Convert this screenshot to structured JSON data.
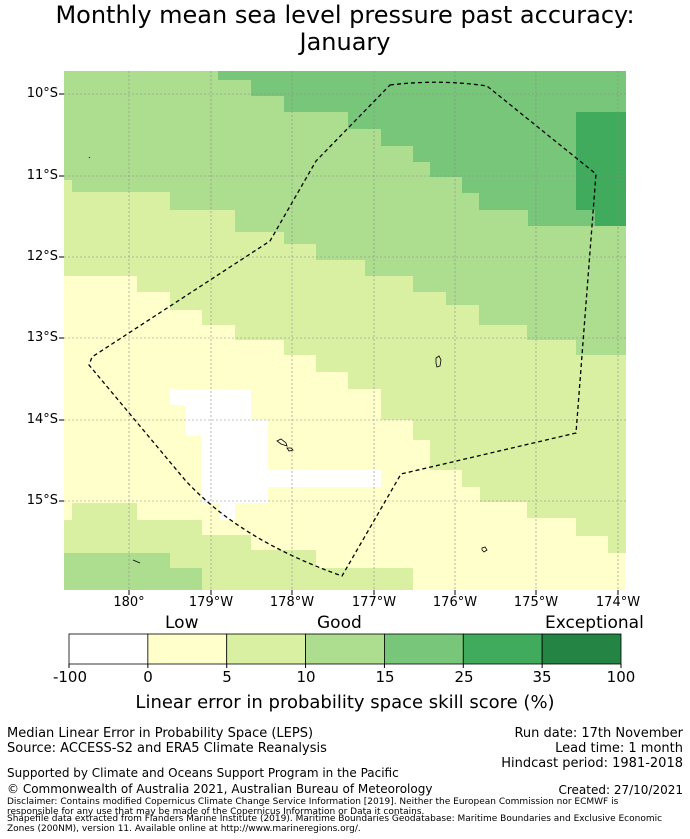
{
  "title_line1": "Monthly mean sea level pressure past accuracy:",
  "title_line2": "January",
  "map": {
    "lat_labels": [
      "10°S",
      "11°S",
      "12°S",
      "13°S",
      "14°S",
      "15°S"
    ],
    "lon_labels": [
      "180°",
      "179°W",
      "178°W",
      "177°W",
      "176°W",
      "175°W",
      "174°W"
    ],
    "colors": {
      "white": "#ffffff",
      "cream": "#ffffcc",
      "pale": "#d9f0a3",
      "light": "#addd8e",
      "mid": "#78c679",
      "green": "#41ab5d",
      "dark": "#238443",
      "grid": "#8a8a8a",
      "eez": "#000000"
    }
  },
  "colorbar": {
    "categories": [
      "Low",
      "Good",
      "Exceptional"
    ],
    "ticks": [
      "-100",
      "0",
      "5",
      "10",
      "15",
      "25",
      "35",
      "100"
    ],
    "bins": [
      "#ffffff",
      "#ffffcc",
      "#d9f0a3",
      "#addd8e",
      "#78c679",
      "#41ab5d",
      "#238443"
    ],
    "label": "Linear error in probability space skill score (%)"
  },
  "footer": {
    "method": "Median Linear Error in Probability Space (LEPS)",
    "source": "Source: ACCESS-S2 and ERA5 Climate Reanalysis",
    "run_date": "Run date: 17th November",
    "lead_time": "Lead time: 1 month",
    "hindcast": "Hindcast period: 1981-2018",
    "support": "Supported by Climate and Oceans Support Program in the Pacific",
    "copyright": "© Commonwealth of Australia 2021, Australian Bureau of Meteorology",
    "created": "Created: 27/10/2021",
    "disclaimer1": "Disclaimer: Contains modified Copernicus Climate Change Service Information [2019]. Neither the European Commission nor ECMWF is",
    "disclaimer2": "responsible for any use that may be made of the Copernicus Information or Data it contains.",
    "shapefile1": "Shapefile data extracted from Flanders Marine Institute (2019). Maritime Boundaries Geodatabase: Maritime Boundaries and Exclusive Economic",
    "shapefile2": "Zones (200NM), version 11. Available online at http://www.marineregions.org/."
  }
}
